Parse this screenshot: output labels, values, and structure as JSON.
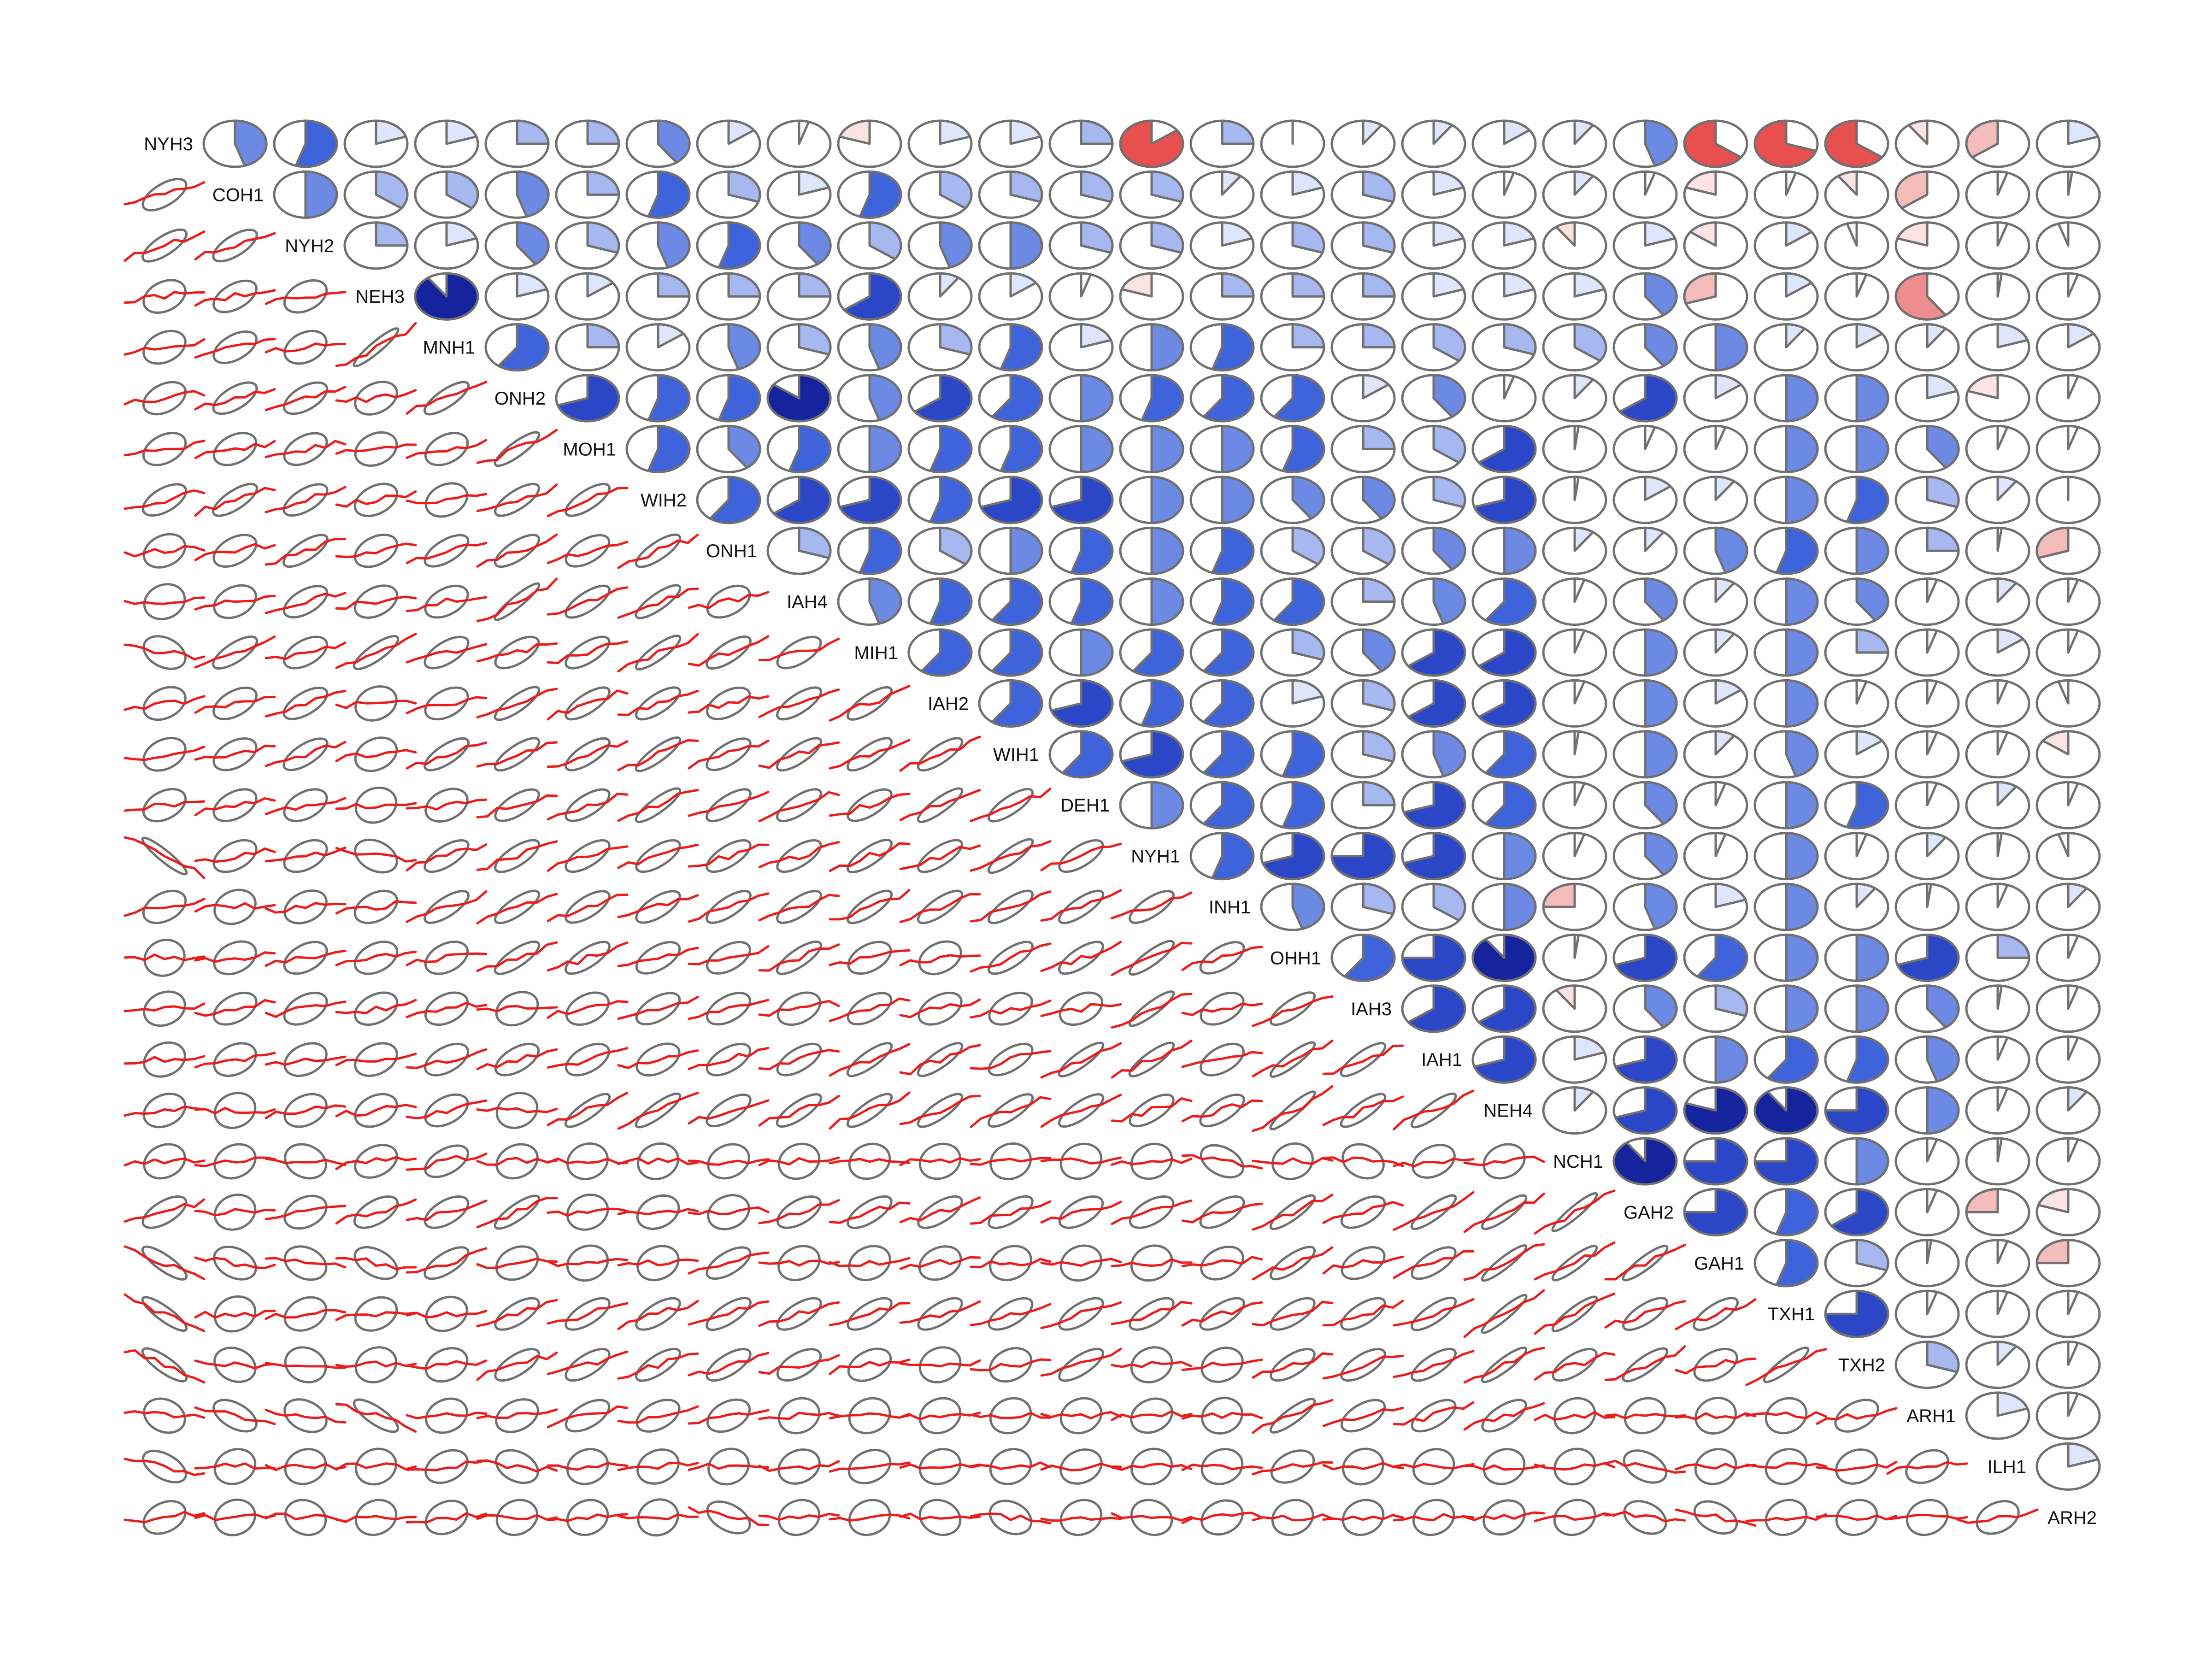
{
  "colors": {
    "positive_ramp": [
      "#ffffff",
      "#dfe6fb",
      "#a7b8f1",
      "#6c89e4",
      "#3f63db",
      "#2b46c7",
      "#15239c"
    ],
    "negative_ramp": [
      "#ffffff",
      "#fbe3e3",
      "#f5bcbc",
      "#ee8d8d",
      "#e8504f"
    ],
    "ellipse_stroke": "#707070",
    "trend_line": "#ee1b1b"
  },
  "chart_data": {
    "type": "heatmap",
    "subtype": "correlogram (upper: pies, lower: ellipses with smoothed trend)",
    "variables": [
      "NYH3",
      "COH1",
      "NYH2",
      "NEH3",
      "MNH1",
      "ONH2",
      "MOH1",
      "WIH2",
      "ONH1",
      "IAH4",
      "MIH1",
      "IAH2",
      "WIH1",
      "DEH1",
      "NYH1",
      "INH1",
      "OHH1",
      "IAH3",
      "IAH1",
      "NEH4",
      "NCH1",
      "GAH2",
      "GAH1",
      "TXH1",
      "TXH2",
      "ARH1",
      "ILH1",
      "ARH2"
    ],
    "correlation_matrix": [
      [
        1.0,
        0.45,
        0.55,
        0.2,
        0.2,
        0.25,
        0.25,
        0.4,
        0.15,
        0.05,
        -0.2,
        0.2,
        0.2,
        0.25,
        -0.85,
        0.25,
        0.0,
        0.1,
        0.1,
        0.15,
        0.1,
        0.45,
        -0.65,
        -0.7,
        -0.65,
        -0.1,
        -0.35,
        0.2
      ],
      [
        0.45,
        1.0,
        0.5,
        0.35,
        0.35,
        0.45,
        0.25,
        0.55,
        0.3,
        0.2,
        0.55,
        0.35,
        0.3,
        0.3,
        0.3,
        0.1,
        0.2,
        0.3,
        0.2,
        0.05,
        0.1,
        0.05,
        -0.2,
        0.05,
        -0.1,
        -0.35,
        0.05,
        0.02
      ],
      [
        0.55,
        0.5,
        1.0,
        0.25,
        0.2,
        0.4,
        0.3,
        0.45,
        0.55,
        0.4,
        0.35,
        0.45,
        0.5,
        0.3,
        0.3,
        0.2,
        0.3,
        0.3,
        0.2,
        0.2,
        -0.1,
        0.2,
        -0.15,
        0.15,
        -0.05,
        -0.2,
        0.05,
        -0.05
      ],
      [
        0.2,
        0.35,
        0.25,
        1.0,
        0.9,
        0.2,
        0.15,
        0.25,
        0.25,
        0.25,
        0.65,
        0.1,
        0.15,
        0.05,
        -0.2,
        0.25,
        0.25,
        0.25,
        0.2,
        0.2,
        0.2,
        0.4,
        -0.3,
        0.15,
        0.05,
        -0.6,
        0.02,
        0.05
      ],
      [
        0.2,
        0.35,
        0.2,
        0.9,
        1.0,
        0.6,
        0.25,
        0.15,
        0.45,
        0.3,
        0.45,
        0.3,
        0.55,
        0.2,
        0.5,
        0.55,
        0.25,
        0.25,
        0.35,
        0.3,
        0.35,
        0.4,
        0.5,
        0.1,
        0.15,
        0.1,
        0.2,
        0.15
      ],
      [
        0.25,
        0.45,
        0.4,
        0.2,
        0.6,
        1.0,
        0.7,
        0.55,
        0.55,
        0.85,
        0.45,
        0.65,
        0.6,
        0.5,
        0.55,
        0.6,
        0.6,
        0.15,
        0.4,
        0.05,
        0.1,
        0.65,
        0.15,
        0.5,
        0.5,
        0.2,
        -0.2,
        0.05
      ],
      [
        0.25,
        0.25,
        0.3,
        0.15,
        0.25,
        0.7,
        1.0,
        0.55,
        0.4,
        0.55,
        0.5,
        0.55,
        0.55,
        0.5,
        0.5,
        0.5,
        0.55,
        0.25,
        0.35,
        0.65,
        0.02,
        0.05,
        0.05,
        0.5,
        0.5,
        0.4,
        0.05,
        0.05
      ],
      [
        0.4,
        0.55,
        0.45,
        0.25,
        0.15,
        0.55,
        0.55,
        1.0,
        0.6,
        0.65,
        0.7,
        0.55,
        0.7,
        0.7,
        0.5,
        0.5,
        0.4,
        0.4,
        0.3,
        0.7,
        0.02,
        0.15,
        0.1,
        0.5,
        0.55,
        0.3,
        0.1,
        0.0
      ],
      [
        0.15,
        0.3,
        0.55,
        0.25,
        0.45,
        0.55,
        0.4,
        0.6,
        1.0,
        0.3,
        0.55,
        0.35,
        0.5,
        0.55,
        0.5,
        0.55,
        0.35,
        0.35,
        0.4,
        0.5,
        0.1,
        0.1,
        0.45,
        0.55,
        0.5,
        0.25,
        0.02,
        -0.3
      ],
      [
        0.05,
        0.2,
        0.4,
        0.25,
        0.3,
        0.85,
        0.55,
        0.65,
        0.3,
        1.0,
        0.45,
        0.55,
        0.6,
        0.55,
        0.5,
        0.55,
        0.6,
        0.25,
        0.45,
        0.6,
        0.05,
        0.4,
        0.1,
        0.5,
        0.4,
        0.05,
        0.1,
        0.05
      ],
      [
        -0.2,
        0.55,
        0.35,
        0.65,
        0.45,
        0.45,
        0.5,
        0.7,
        0.55,
        0.45,
        1.0,
        0.6,
        0.6,
        0.5,
        0.6,
        0.6,
        0.3,
        0.4,
        0.65,
        0.65,
        0.05,
        0.5,
        0.1,
        0.5,
        0.25,
        0.05,
        0.15,
        0.05
      ],
      [
        0.2,
        0.35,
        0.45,
        0.1,
        0.3,
        0.65,
        0.55,
        0.55,
        0.35,
        0.55,
        0.6,
        1.0,
        0.6,
        0.7,
        0.55,
        0.6,
        0.2,
        0.3,
        0.65,
        0.65,
        0.05,
        0.5,
        0.15,
        0.5,
        0.05,
        0.05,
        0.05,
        -0.05
      ],
      [
        0.2,
        0.3,
        0.5,
        0.15,
        0.55,
        0.6,
        0.55,
        0.7,
        0.5,
        0.6,
        0.6,
        0.6,
        1.0,
        0.6,
        0.7,
        0.6,
        0.55,
        0.3,
        0.45,
        0.6,
        0.02,
        0.5,
        0.1,
        0.45,
        0.15,
        0.05,
        0.05,
        -0.15
      ],
      [
        0.25,
        0.3,
        0.3,
        0.05,
        0.2,
        0.5,
        0.5,
        0.7,
        0.55,
        0.55,
        0.5,
        0.7,
        0.6,
        1.0,
        0.5,
        0.6,
        0.55,
        0.25,
        0.7,
        0.6,
        0.05,
        0.4,
        0.05,
        0.5,
        0.55,
        0.05,
        0.1,
        0.05
      ],
      [
        -0.85,
        0.3,
        0.3,
        -0.2,
        0.5,
        0.55,
        0.5,
        0.5,
        0.5,
        0.5,
        0.6,
        0.55,
        0.7,
        0.5,
        1.0,
        0.55,
        0.7,
        0.75,
        0.7,
        0.5,
        0.05,
        0.4,
        0.05,
        0.5,
        0.05,
        0.1,
        0.02,
        -0.05
      ],
      [
        0.25,
        0.1,
        0.2,
        0.25,
        0.55,
        0.6,
        0.5,
        0.5,
        0.55,
        0.55,
        0.6,
        0.6,
        0.6,
        0.6,
        0.55,
        1.0,
        0.45,
        0.3,
        0.35,
        0.5,
        -0.25,
        0.45,
        0.2,
        0.5,
        0.1,
        0.02,
        0.05,
        0.1
      ],
      [
        0.0,
        0.2,
        0.3,
        0.25,
        0.25,
        0.6,
        0.55,
        0.4,
        0.35,
        0.6,
        0.3,
        0.2,
        0.55,
        0.55,
        0.7,
        0.45,
        1.0,
        0.6,
        0.75,
        0.9,
        0.02,
        0.7,
        0.6,
        0.5,
        0.5,
        0.7,
        0.25,
        0.05
      ],
      [
        0.1,
        0.3,
        0.3,
        0.25,
        0.25,
        0.15,
        0.25,
        0.4,
        0.35,
        0.25,
        0.4,
        0.3,
        0.3,
        0.25,
        0.75,
        0.3,
        0.6,
        1.0,
        0.65,
        0.65,
        -0.1,
        0.4,
        0.3,
        0.5,
        0.5,
        0.4,
        0.02,
        0.05
      ],
      [
        0.1,
        0.2,
        0.2,
        0.2,
        0.35,
        0.4,
        0.35,
        0.3,
        0.4,
        0.45,
        0.65,
        0.65,
        0.45,
        0.7,
        0.7,
        0.35,
        0.75,
        0.65,
        1.0,
        0.7,
        0.2,
        0.7,
        0.5,
        0.6,
        0.55,
        0.45,
        0.05,
        0.05
      ],
      [
        0.15,
        0.05,
        0.2,
        0.2,
        0.3,
        0.05,
        0.65,
        0.7,
        0.5,
        0.6,
        0.65,
        0.65,
        0.6,
        0.6,
        0.5,
        0.5,
        0.9,
        0.65,
        0.7,
        1.0,
        0.1,
        0.7,
        0.8,
        0.9,
        0.75,
        0.5,
        0.05,
        0.1
      ],
      [
        0.1,
        0.1,
        -0.1,
        0.2,
        0.35,
        0.1,
        0.02,
        0.02,
        0.1,
        0.05,
        0.05,
        0.05,
        0.02,
        0.05,
        0.05,
        -0.25,
        0.02,
        -0.1,
        0.2,
        0.1,
        1.0,
        0.9,
        0.75,
        0.75,
        0.5,
        0.05,
        0.02,
        0.05
      ],
      [
        0.45,
        0.05,
        0.2,
        0.4,
        0.4,
        0.65,
        0.05,
        0.15,
        0.1,
        0.4,
        0.5,
        0.5,
        0.5,
        0.4,
        0.4,
        0.45,
        0.7,
        0.4,
        0.7,
        0.7,
        0.9,
        1.0,
        0.75,
        0.55,
        0.65,
        0.05,
        -0.25,
        -0.2
      ],
      [
        -0.65,
        -0.2,
        -0.15,
        -0.3,
        0.5,
        0.15,
        0.05,
        0.1,
        0.45,
        0.1,
        0.1,
        0.15,
        0.1,
        0.05,
        0.05,
        0.2,
        0.6,
        0.3,
        0.5,
        0.8,
        0.75,
        0.75,
        1.0,
        0.55,
        0.3,
        0.02,
        0.05,
        -0.25
      ],
      [
        -0.7,
        0.05,
        0.15,
        0.15,
        0.1,
        0.5,
        0.5,
        0.5,
        0.55,
        0.5,
        0.5,
        0.5,
        0.45,
        0.5,
        0.5,
        0.5,
        0.5,
        0.5,
        0.6,
        0.9,
        0.75,
        0.55,
        0.55,
        1.0,
        0.75,
        0.05,
        0.05,
        0.05
      ],
      [
        -0.65,
        -0.1,
        -0.05,
        0.05,
        0.15,
        0.5,
        0.5,
        0.55,
        0.5,
        0.4,
        0.25,
        0.05,
        0.15,
        0.55,
        0.05,
        0.1,
        0.5,
        0.5,
        0.55,
        0.75,
        0.5,
        0.65,
        0.3,
        0.75,
        1.0,
        0.3,
        0.1,
        0.05
      ],
      [
        -0.1,
        -0.35,
        -0.2,
        -0.6,
        0.1,
        0.2,
        0.4,
        0.3,
        0.25,
        0.05,
        0.05,
        0.05,
        0.05,
        0.05,
        0.1,
        0.02,
        0.7,
        0.4,
        0.45,
        0.5,
        0.05,
        0.05,
        0.02,
        0.05,
        0.3,
        1.0,
        0.2,
        0.05
      ],
      [
        -0.35,
        0.05,
        0.05,
        0.02,
        0.2,
        -0.2,
        0.05,
        0.1,
        0.02,
        0.1,
        0.15,
        0.05,
        0.05,
        0.1,
        0.02,
        0.05,
        0.25,
        0.02,
        0.05,
        0.05,
        0.02,
        -0.25,
        0.05,
        0.05,
        0.1,
        0.2,
        1.0,
        0.2
      ],
      [
        0.2,
        0.02,
        -0.05,
        0.05,
        0.15,
        0.05,
        0.05,
        0.0,
        -0.3,
        0.05,
        0.05,
        -0.05,
        -0.15,
        0.05,
        -0.05,
        0.1,
        0.05,
        0.05,
        0.05,
        0.1,
        0.05,
        -0.2,
        -0.25,
        0.05,
        0.05,
        0.05,
        0.2,
        1.0
      ]
    ],
    "grid": false,
    "legend": "none",
    "title": "",
    "xlabel": "",
    "ylabel": ""
  }
}
